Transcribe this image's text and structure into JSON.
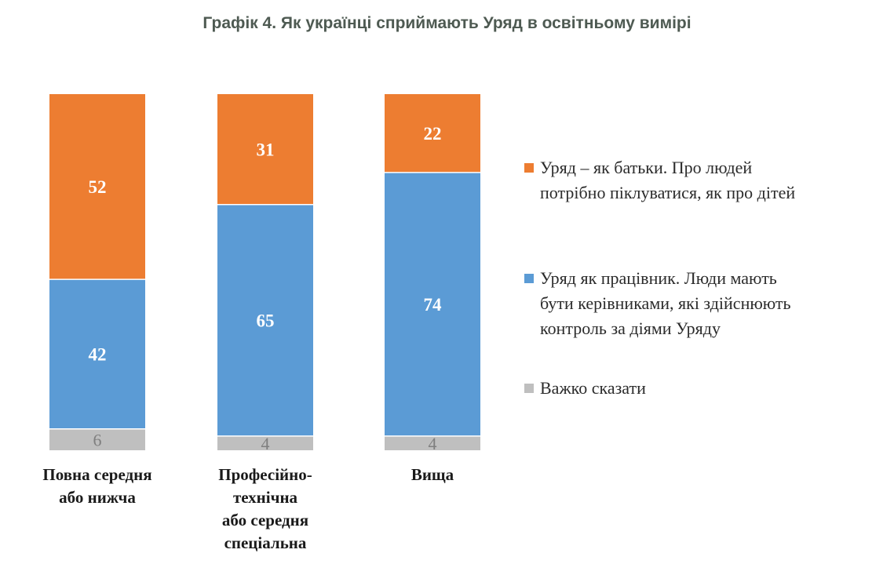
{
  "title": "Графік 4. Як українці сприймають Уряд в освітньому вимірі",
  "chart_data": {
    "type": "bar",
    "stacked": true,
    "categories": [
      [
        "Повна середня",
        "або нижча"
      ],
      [
        "Професійно-",
        "технічна",
        "або середня",
        "спеціальна"
      ],
      [
        "Вища"
      ]
    ],
    "series": [
      {
        "name": "Важко сказати",
        "values": [
          6,
          4,
          4
        ],
        "color": "#bfbfbf",
        "label_color": "#7f7f7f"
      },
      {
        "name": "Уряд як працівник. Люди мають бути керівниками, які здійснюють контроль за діями Уряду",
        "values": [
          42,
          65,
          74
        ],
        "color": "#5b9bd5",
        "label_color": "#ffffff"
      },
      {
        "name": "Уряд – як батьки. Про людей потрібно піклуватися, як про дітей",
        "values": [
          52,
          31,
          22
        ],
        "color": "#ed7d31",
        "label_color": "#ffffff"
      }
    ],
    "ylim": [
      0,
      100
    ],
    "grid": false,
    "legend_position": "right"
  },
  "legend": [
    {
      "lines": [
        "Уряд – як батьки. Про людей",
        "потрібно піклуватися, як про дітей"
      ],
      "color": "#ed7d31",
      "icon": "square-swatch"
    },
    {
      "lines": [
        "Уряд як працівник. Люди мають",
        "бути керівниками, які здійснюють",
        "контроль за діями Уряду"
      ],
      "color": "#5b9bd5",
      "icon": "square-swatch"
    },
    {
      "lines": [
        "Важко сказати"
      ],
      "color": "#bfbfbf",
      "icon": "square-swatch"
    }
  ]
}
